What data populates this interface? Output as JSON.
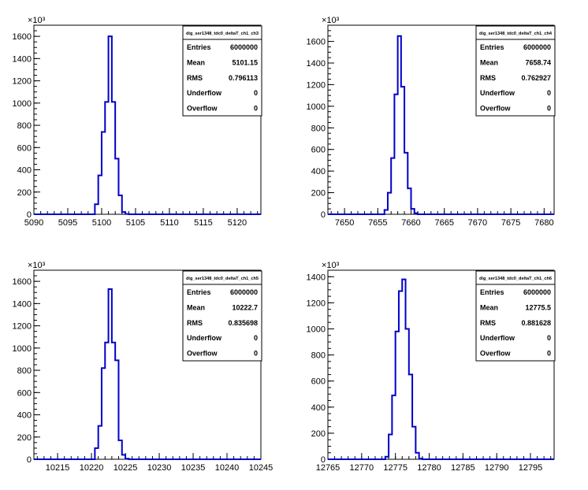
{
  "chart_data": [
    {
      "type": "histogram",
      "title": "",
      "xlabel": "",
      "ylabel": "",
      "y_exponent_label": "×10³",
      "y_multiplier": 1000,
      "xlim": [
        5090,
        5123.5
      ],
      "ylim": [
        0,
        1700
      ],
      "xticks": [
        5090,
        5095,
        5100,
        5105,
        5110,
        5115,
        5120
      ],
      "yticks": [
        0,
        200,
        400,
        600,
        800,
        1000,
        1200,
        1400,
        1600
      ],
      "bin_width": 0.5,
      "bins_start": 5099.0,
      "values": [
        90,
        350,
        740,
        1010,
        1600,
        1010,
        500,
        170,
        20,
        3
      ],
      "line_color": "#0000cc",
      "legend_placement": "top-right",
      "stats": {
        "name": "dig_ser1348_tdc0_deltaT_ch1_ch3",
        "rows": [
          {
            "label": "Entries",
            "value": "6000000"
          },
          {
            "label": "Mean",
            "value": "5101.15"
          },
          {
            "label": "RMS",
            "value": "0.796113"
          },
          {
            "label": "Underflow",
            "value": "0"
          },
          {
            "label": "Overflow",
            "value": "0"
          }
        ]
      }
    },
    {
      "type": "histogram",
      "title": "",
      "xlabel": "",
      "ylabel": "",
      "y_exponent_label": "×10³",
      "y_multiplier": 1000,
      "xlim": [
        7647.5,
        7681.5
      ],
      "ylim": [
        0,
        1750
      ],
      "xticks": [
        7650,
        7655,
        7660,
        7665,
        7670,
        7675,
        7680
      ],
      "yticks": [
        0,
        200,
        400,
        600,
        800,
        1000,
        1200,
        1400,
        1600
      ],
      "bin_width": 0.5,
      "bins_start": 7656.0,
      "values": [
        40,
        200,
        520,
        1110,
        1650,
        1180,
        570,
        240,
        50,
        10
      ],
      "line_color": "#0000cc",
      "legend_placement": "top-right",
      "stats": {
        "name": "dig_ser1348_tdc0_deltaT_ch1_ch4",
        "rows": [
          {
            "label": "Entries",
            "value": "6000000"
          },
          {
            "label": "Mean",
            "value": "7658.74"
          },
          {
            "label": "RMS",
            "value": "0.762927"
          },
          {
            "label": "Underflow",
            "value": "0"
          },
          {
            "label": "Overflow",
            "value": "0"
          }
        ]
      }
    },
    {
      "type": "histogram",
      "title": "",
      "xlabel": "",
      "ylabel": "",
      "y_exponent_label": "×10³",
      "y_multiplier": 1000,
      "xlim": [
        10211.5,
        10245
      ],
      "ylim": [
        0,
        1700
      ],
      "xticks": [
        10215,
        10220,
        10225,
        10230,
        10235,
        10240,
        10245
      ],
      "yticks": [
        0,
        200,
        400,
        600,
        800,
        1000,
        1200,
        1400,
        1600
      ],
      "bin_width": 0.5,
      "bins_start": 10220.5,
      "values": [
        100,
        300,
        820,
        1050,
        1530,
        1050,
        890,
        170,
        40,
        5
      ],
      "line_color": "#0000cc",
      "legend_placement": "top-right",
      "stats": {
        "name": "dig_ser1348_tdc0_deltaT_ch1_ch5",
        "rows": [
          {
            "label": "Entries",
            "value": "6000000"
          },
          {
            "label": "Mean",
            "value": "10222.7"
          },
          {
            "label": "RMS",
            "value": "0.835698"
          },
          {
            "label": "Underflow",
            "value": "0"
          },
          {
            "label": "Overflow",
            "value": "0"
          }
        ]
      }
    },
    {
      "type": "histogram",
      "title": "",
      "xlabel": "",
      "ylabel": "",
      "y_exponent_label": "×10³",
      "y_multiplier": 1000,
      "xlim": [
        12765,
        12798.5
      ],
      "ylim": [
        0,
        1450
      ],
      "xticks": [
        12765,
        12770,
        12775,
        12780,
        12785,
        12790,
        12795
      ],
      "yticks": [
        0,
        200,
        400,
        600,
        800,
        1000,
        1200,
        1400
      ],
      "bin_width": 0.5,
      "bins_start": 12773.5,
      "values": [
        20,
        190,
        490,
        980,
        1290,
        1380,
        1000,
        650,
        250,
        50,
        5
      ],
      "line_color": "#0000cc",
      "legend_placement": "top-right",
      "stats": {
        "name": "dig_ser1348_tdc0_deltaT_ch1_ch6",
        "rows": [
          {
            "label": "Entries",
            "value": "6000000"
          },
          {
            "label": "Mean",
            "value": "12775.5"
          },
          {
            "label": "RMS",
            "value": "0.881628"
          },
          {
            "label": "Underflow",
            "value": "0"
          },
          {
            "label": "Overflow",
            "value": "0"
          }
        ]
      }
    }
  ]
}
